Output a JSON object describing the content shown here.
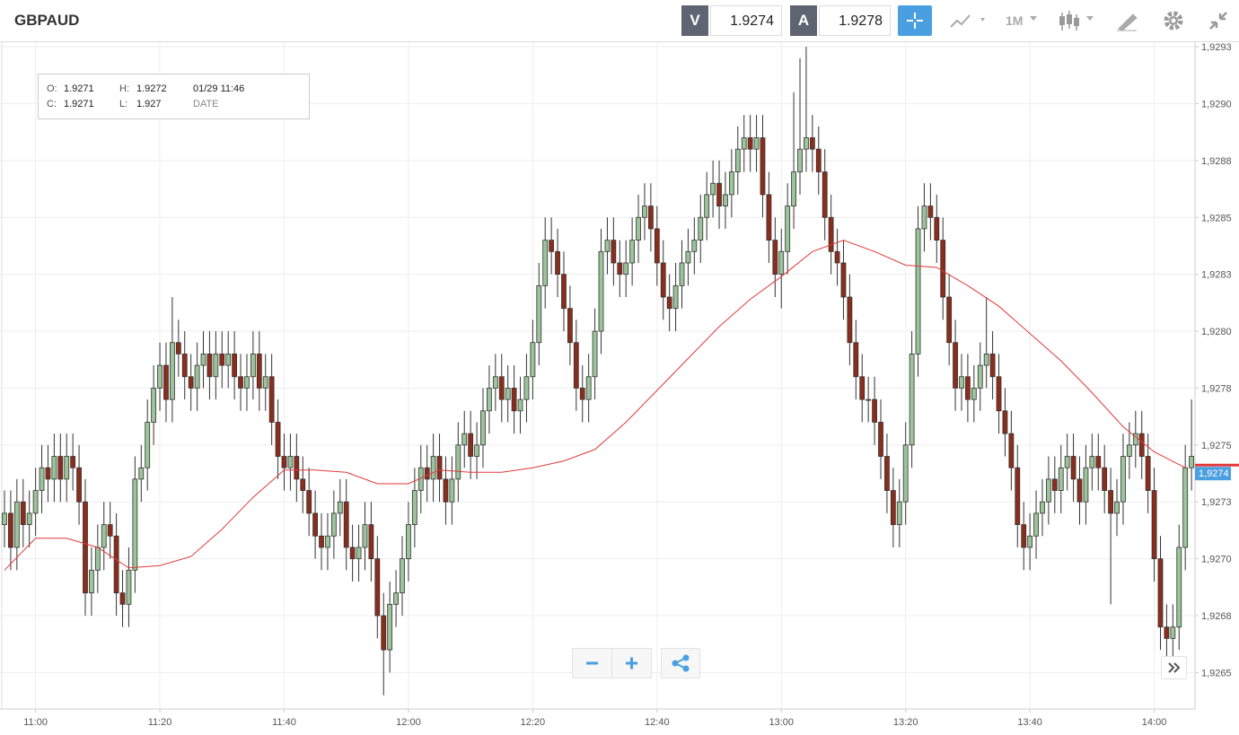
{
  "header": {
    "symbol": "GBPAUD",
    "sell_label": "V",
    "sell_price": "1.9274",
    "buy_label": "A",
    "buy_price": "1.9278",
    "timeframe": "1M"
  },
  "info_box": {
    "o_label": "O:",
    "o_value": "1.9271",
    "h_label": "H:",
    "h_value": "1.9272",
    "date_value": "01/29 11:46",
    "c_label": "C:",
    "c_value": "1.9271",
    "l_label": "L:",
    "l_value": "1.927",
    "date_label": "DATE"
  },
  "chart_data": {
    "type": "candlestick",
    "x": [
      "10:55",
      "10:56",
      "10:57",
      "10:58",
      "10:59",
      "11:00",
      "11:01",
      "11:02",
      "11:03",
      "11:04",
      "11:05",
      "11:06",
      "11:07",
      "11:08",
      "11:09",
      "11:10",
      "11:11",
      "11:12",
      "11:13",
      "11:14",
      "11:15",
      "11:16",
      "11:17",
      "11:18",
      "11:19",
      "11:20",
      "11:21",
      "11:22",
      "11:23",
      "11:24",
      "11:25",
      "11:26",
      "11:27",
      "11:28",
      "11:29",
      "11:30",
      "11:31",
      "11:32",
      "11:33",
      "11:34",
      "11:35",
      "11:36",
      "11:37",
      "11:38",
      "11:39",
      "11:40",
      "11:41",
      "11:42",
      "11:43",
      "11:44",
      "11:45",
      "11:46",
      "11:47",
      "11:48",
      "11:49",
      "11:50",
      "11:51",
      "11:52",
      "11:53",
      "11:54",
      "11:55",
      "11:56",
      "11:57",
      "11:58",
      "11:59",
      "12:00",
      "12:01",
      "12:02",
      "12:03",
      "12:04",
      "12:05",
      "12:06",
      "12:07",
      "12:08",
      "12:09",
      "12:10",
      "12:11",
      "12:12",
      "12:13",
      "12:14",
      "12:15",
      "12:16",
      "12:17",
      "12:18",
      "12:19",
      "12:20",
      "12:21",
      "12:22",
      "12:23",
      "12:24",
      "12:25",
      "12:26",
      "12:27",
      "12:28",
      "12:29",
      "12:30",
      "12:31",
      "12:32",
      "12:33",
      "12:34",
      "12:35",
      "12:36",
      "12:37",
      "12:38",
      "12:39",
      "12:40",
      "12:41",
      "12:42",
      "12:43",
      "12:44",
      "12:45",
      "12:46",
      "12:47",
      "12:48",
      "12:49",
      "12:50",
      "12:51",
      "12:52",
      "12:53",
      "12:54",
      "12:55",
      "12:56",
      "12:57",
      "12:58",
      "12:59",
      "13:00",
      "13:01",
      "13:02",
      "13:03",
      "13:04",
      "13:05",
      "13:06",
      "13:07",
      "13:08",
      "13:09",
      "13:10",
      "13:11",
      "13:12",
      "13:13",
      "13:14",
      "13:15",
      "13:16",
      "13:17",
      "13:18",
      "13:19",
      "13:20",
      "13:21",
      "13:22",
      "13:23",
      "13:24",
      "13:25",
      "13:26",
      "13:27",
      "13:28",
      "13:29",
      "13:30",
      "13:31",
      "13:32",
      "13:33",
      "13:34",
      "13:35",
      "13:36",
      "13:37",
      "13:38",
      "13:39",
      "13:40",
      "13:41",
      "13:42",
      "13:43",
      "13:44",
      "13:45",
      "13:46",
      "13:47",
      "13:48",
      "13:49",
      "13:50",
      "13:51",
      "13:52",
      "13:53",
      "13:54",
      "13:55",
      "13:56",
      "13:57",
      "13:58",
      "13:59",
      "14:00",
      "14:01",
      "14:02",
      "14:03",
      "14:04",
      "14:05",
      "14:06"
    ],
    "open": [
      1.92715,
      1.9272,
      1.92705,
      1.92725,
      1.92715,
      1.9272,
      1.9273,
      1.9274,
      1.92735,
      1.92745,
      1.92735,
      1.92745,
      1.9274,
      1.92725,
      1.92685,
      1.92695,
      1.92705,
      1.92715,
      1.9271,
      1.92685,
      1.9268,
      1.92695,
      1.92735,
      1.9274,
      1.9276,
      1.92775,
      1.92785,
      1.9277,
      1.92795,
      1.9279,
      1.9278,
      1.92775,
      1.92785,
      1.9279,
      1.9278,
      1.9279,
      1.92785,
      1.9279,
      1.9278,
      1.92775,
      1.9278,
      1.9279,
      1.92775,
      1.9278,
      1.9276,
      1.92745,
      1.9274,
      1.92745,
      1.92735,
      1.9273,
      1.9272,
      1.9271,
      1.92705,
      1.9271,
      1.9272,
      1.92725,
      1.92705,
      1.927,
      1.92705,
      1.92715,
      1.927,
      1.92675,
      1.9266,
      1.9268,
      1.92685,
      1.927,
      1.92715,
      1.9273,
      1.9274,
      1.92735,
      1.92745,
      1.92735,
      1.92725,
      1.92735,
      1.9275,
      1.92755,
      1.92745,
      1.9275,
      1.92765,
      1.92775,
      1.9278,
      1.9277,
      1.92775,
      1.92765,
      1.9277,
      1.9278,
      1.92795,
      1.9282,
      1.9284,
      1.92835,
      1.92825,
      1.9281,
      1.92795,
      1.92775,
      1.9277,
      1.9278,
      1.928,
      1.92835,
      1.9284,
      1.9283,
      1.92825,
      1.9283,
      1.9284,
      1.9285,
      1.92855,
      1.92845,
      1.9283,
      1.92815,
      1.9281,
      1.9282,
      1.9283,
      1.92835,
      1.9284,
      1.9285,
      1.9286,
      1.92865,
      1.92855,
      1.9286,
      1.9287,
      1.9288,
      1.92885,
      1.9288,
      1.92885,
      1.9286,
      1.9284,
      1.92825,
      1.92835,
      1.92855,
      1.9287,
      1.9288,
      1.92885,
      1.9288,
      1.9287,
      1.9285,
      1.92835,
      1.9283,
      1.92815,
      1.92795,
      1.9278,
      1.9277,
      1.9277,
      1.9276,
      1.92745,
      1.9273,
      1.92715,
      1.92725,
      1.9275,
      1.9279,
      1.92845,
      1.92855,
      1.9285,
      1.9284,
      1.92815,
      1.92795,
      1.92775,
      1.9278,
      1.9277,
      1.92775,
      1.92785,
      1.9279,
      1.9278,
      1.92765,
      1.92755,
      1.9274,
      1.92715,
      1.92705,
      1.9271,
      1.9272,
      1.92725,
      1.92735,
      1.9273,
      1.9274,
      1.92745,
      1.92735,
      1.92725,
      1.9274,
      1.92745,
      1.9274,
      1.9273,
      1.9272,
      1.92725,
      1.92745,
      1.9275,
      1.92755,
      1.92745,
      1.9273,
      1.927,
      1.9267,
      1.92665,
      1.9267,
      1.92705,
      1.9274
    ],
    "high": [
      1.9273,
      1.9273,
      1.92735,
      1.92735,
      1.9273,
      1.9274,
      1.9275,
      1.9275,
      1.92755,
      1.92755,
      1.92755,
      1.92755,
      1.9275,
      1.92735,
      1.92705,
      1.92715,
      1.92725,
      1.92725,
      1.9272,
      1.92695,
      1.92705,
      1.92745,
      1.9275,
      1.9277,
      1.92785,
      1.92795,
      1.92795,
      1.92815,
      1.92805,
      1.928,
      1.9279,
      1.92795,
      1.928,
      1.928,
      1.928,
      1.928,
      1.928,
      1.928,
      1.9279,
      1.9279,
      1.928,
      1.928,
      1.9279,
      1.9279,
      1.9277,
      1.92755,
      1.92755,
      1.92755,
      1.92745,
      1.9274,
      1.9273,
      1.9272,
      1.9272,
      1.9273,
      1.92735,
      1.92735,
      1.92715,
      1.92715,
      1.92725,
      1.92725,
      1.9271,
      1.92685,
      1.9269,
      1.92695,
      1.9271,
      1.92725,
      1.9274,
      1.9275,
      1.9275,
      1.92755,
      1.92755,
      1.92745,
      1.92745,
      1.9276,
      1.92765,
      1.92765,
      1.9276,
      1.92775,
      1.92785,
      1.9279,
      1.9279,
      1.92785,
      1.92785,
      1.9278,
      1.9279,
      1.92805,
      1.9283,
      1.9285,
      1.9285,
      1.92845,
      1.92835,
      1.9282,
      1.92805,
      1.92785,
      1.9279,
      1.9281,
      1.92845,
      1.9285,
      1.9285,
      1.9284,
      1.9284,
      1.9285,
      1.9286,
      1.92865,
      1.92865,
      1.92855,
      1.9284,
      1.92825,
      1.9283,
      1.9284,
      1.92845,
      1.9285,
      1.9286,
      1.9287,
      1.92875,
      1.92875,
      1.9287,
      1.9288,
      1.9289,
      1.92895,
      1.92895,
      1.92895,
      1.92895,
      1.9287,
      1.9285,
      1.92845,
      1.92865,
      1.92905,
      1.9292,
      1.92925,
      1.92895,
      1.9289,
      1.9288,
      1.9286,
      1.92845,
      1.9284,
      1.92825,
      1.92805,
      1.9279,
      1.9278,
      1.9278,
      1.9277,
      1.92755,
      1.9274,
      1.92735,
      1.9276,
      1.928,
      1.92855,
      1.92865,
      1.92865,
      1.9286,
      1.9285,
      1.92825,
      1.92805,
      1.9279,
      1.9279,
      1.92785,
      1.92795,
      1.92815,
      1.928,
      1.9279,
      1.92775,
      1.92765,
      1.9275,
      1.92725,
      1.9272,
      1.9273,
      1.92735,
      1.92745,
      1.92745,
      1.9275,
      1.92755,
      1.92755,
      1.92745,
      1.9275,
      1.92755,
      1.92755,
      1.9275,
      1.9274,
      1.92735,
      1.92755,
      1.9276,
      1.92765,
      1.92765,
      1.92755,
      1.9274,
      1.9271,
      1.9268,
      1.9268,
      1.92715,
      1.9275,
      1.9277
    ],
    "low": [
      1.92705,
      1.92695,
      1.92695,
      1.92705,
      1.92705,
      1.9271,
      1.9272,
      1.92725,
      1.92725,
      1.92725,
      1.92725,
      1.9273,
      1.92715,
      1.92675,
      1.92675,
      1.92685,
      1.92695,
      1.927,
      1.92675,
      1.9267,
      1.9267,
      1.92685,
      1.92725,
      1.9273,
      1.9275,
      1.92765,
      1.9276,
      1.9276,
      1.9278,
      1.9277,
      1.92765,
      1.92765,
      1.92775,
      1.9277,
      1.9277,
      1.92775,
      1.92775,
      1.9277,
      1.92765,
      1.92765,
      1.9277,
      1.92765,
      1.92765,
      1.9275,
      1.92735,
      1.9273,
      1.9273,
      1.92725,
      1.9272,
      1.9271,
      1.927,
      1.92695,
      1.92695,
      1.927,
      1.9271,
      1.92695,
      1.9269,
      1.9269,
      1.92695,
      1.9269,
      1.92665,
      1.9264,
      1.9265,
      1.9267,
      1.92675,
      1.9269,
      1.92705,
      1.9272,
      1.92725,
      1.92725,
      1.92725,
      1.92715,
      1.92715,
      1.92725,
      1.9274,
      1.92735,
      1.92735,
      1.9274,
      1.92755,
      1.92765,
      1.9276,
      1.9276,
      1.92755,
      1.92755,
      1.9276,
      1.9277,
      1.92785,
      1.9281,
      1.92825,
      1.92815,
      1.928,
      1.92785,
      1.92765,
      1.9276,
      1.9276,
      1.9277,
      1.9279,
      1.92825,
      1.9282,
      1.92815,
      1.92815,
      1.9282,
      1.9283,
      1.9284,
      1.92835,
      1.9282,
      1.92805,
      1.928,
      1.928,
      1.9281,
      1.9282,
      1.92825,
      1.9283,
      1.9284,
      1.9285,
      1.92845,
      1.92845,
      1.9285,
      1.9286,
      1.9287,
      1.9287,
      1.9287,
      1.9285,
      1.9283,
      1.92815,
      1.9281,
      1.92825,
      1.92845,
      1.9286,
      1.9287,
      1.9287,
      1.9286,
      1.9284,
      1.92825,
      1.9282,
      1.92805,
      1.92785,
      1.9277,
      1.9276,
      1.9276,
      1.9275,
      1.92735,
      1.9272,
      1.92705,
      1.92705,
      1.92715,
      1.9274,
      1.9278,
      1.92835,
      1.9284,
      1.9283,
      1.92805,
      1.92785,
      1.92765,
      1.92765,
      1.9276,
      1.9276,
      1.92765,
      1.92775,
      1.9277,
      1.92755,
      1.92745,
      1.9273,
      1.92705,
      1.92695,
      1.92695,
      1.927,
      1.9271,
      1.92715,
      1.9272,
      1.9272,
      1.9273,
      1.92725,
      1.92715,
      1.92715,
      1.9273,
      1.9273,
      1.9272,
      1.9268,
      1.9271,
      1.92715,
      1.92735,
      1.9274,
      1.92735,
      1.9272,
      1.9269,
      1.9266,
      1.92655,
      1.92655,
      1.9266,
      1.92695,
      1.9273
    ],
    "close": [
      1.9272,
      1.92705,
      1.92725,
      1.92715,
      1.9272,
      1.9273,
      1.9274,
      1.92735,
      1.92745,
      1.92735,
      1.92745,
      1.9274,
      1.92725,
      1.92685,
      1.92695,
      1.92705,
      1.92715,
      1.9271,
      1.92685,
      1.9268,
      1.92695,
      1.92735,
      1.9274,
      1.9276,
      1.92775,
      1.92785,
      1.9277,
      1.92795,
      1.9279,
      1.9278,
      1.92775,
      1.92785,
      1.9279,
      1.9278,
      1.9279,
      1.92785,
      1.9279,
      1.9278,
      1.92775,
      1.9278,
      1.9279,
      1.92775,
      1.9278,
      1.9276,
      1.92745,
      1.9274,
      1.92745,
      1.92735,
      1.9273,
      1.9272,
      1.9271,
      1.92705,
      1.9271,
      1.9272,
      1.92725,
      1.92705,
      1.927,
      1.92705,
      1.92715,
      1.927,
      1.92675,
      1.9266,
      1.9268,
      1.92685,
      1.927,
      1.92715,
      1.9273,
      1.9274,
      1.92735,
      1.92745,
      1.92735,
      1.92725,
      1.92735,
      1.9275,
      1.92755,
      1.92745,
      1.9275,
      1.92765,
      1.92775,
      1.9278,
      1.9277,
      1.92775,
      1.92765,
      1.9277,
      1.9278,
      1.92795,
      1.9282,
      1.9284,
      1.92835,
      1.92825,
      1.9281,
      1.92795,
      1.92775,
      1.9277,
      1.9278,
      1.928,
      1.92835,
      1.9284,
      1.9283,
      1.92825,
      1.9283,
      1.9284,
      1.9285,
      1.92855,
      1.92845,
      1.9283,
      1.92815,
      1.9281,
      1.9282,
      1.9283,
      1.92835,
      1.9284,
      1.9285,
      1.9286,
      1.92865,
      1.92855,
      1.9286,
      1.9287,
      1.9288,
      1.92885,
      1.9288,
      1.92885,
      1.9286,
      1.9284,
      1.92825,
      1.92835,
      1.92855,
      1.9287,
      1.9288,
      1.92885,
      1.9288,
      1.9287,
      1.9285,
      1.92835,
      1.9283,
      1.92815,
      1.92795,
      1.9278,
      1.9277,
      1.9277,
      1.9276,
      1.92745,
      1.9273,
      1.92715,
      1.92725,
      1.9275,
      1.9279,
      1.92845,
      1.92855,
      1.9285,
      1.9284,
      1.92815,
      1.92795,
      1.92775,
      1.9278,
      1.9277,
      1.92775,
      1.92785,
      1.9279,
      1.9278,
      1.92765,
      1.92755,
      1.9274,
      1.92715,
      1.92705,
      1.9271,
      1.9272,
      1.92725,
      1.92735,
      1.9273,
      1.9274,
      1.92745,
      1.92735,
      1.92725,
      1.9274,
      1.92745,
      1.9274,
      1.9273,
      1.9272,
      1.92725,
      1.92745,
      1.9275,
      1.92755,
      1.92745,
      1.9273,
      1.927,
      1.9267,
      1.92665,
      1.9267,
      1.92705,
      1.9274,
      1.92745
    ],
    "up_color": "#9cc49a",
    "down_color": "#8c2d1c",
    "ma": {
      "color": "#e0393a",
      "x": [
        "10:55",
        "11:00",
        "11:05",
        "11:10",
        "11:15",
        "11:20",
        "11:25",
        "11:30",
        "11:35",
        "11:40",
        "11:45",
        "11:50",
        "11:55",
        "12:00",
        "12:05",
        "12:10",
        "12:15",
        "12:20",
        "12:25",
        "12:30",
        "12:35",
        "12:40",
        "12:45",
        "12:50",
        "12:55",
        "13:00",
        "13:05",
        "13:10",
        "13:15",
        "13:20",
        "13:25",
        "13:30",
        "13:35",
        "13:40",
        "13:45",
        "13:50",
        "13:55",
        "14:00",
        "14:05"
      ],
      "values": [
        1.92695,
        1.92709,
        1.92709,
        1.92705,
        1.92696,
        1.92697,
        1.92701,
        1.92713,
        1.92727,
        1.92739,
        1.92739,
        1.92738,
        1.92733,
        1.92733,
        1.92739,
        1.92738,
        1.92738,
        1.9274,
        1.92743,
        1.92748,
        1.9276,
        1.92774,
        1.92788,
        1.92802,
        1.92814,
        1.92824,
        1.92835,
        1.9284,
        1.92835,
        1.92829,
        1.92828,
        1.9282,
        1.92811,
        1.92799,
        1.92787,
        1.92773,
        1.92758,
        1.92747,
        1.9274
      ]
    },
    "last_price": {
      "value": 1.9274,
      "label": "1,9274",
      "color": "#e0393a"
    },
    "ylim": [
      1.92634,
      1.92927
    ],
    "yticks": [
      {
        "value": 1.9265,
        "label": "1,9265"
      },
      {
        "value": 1.92675,
        "label": "1,9268"
      },
      {
        "value": 1.927,
        "label": "1,9270"
      },
      {
        "value": 1.92725,
        "label": "1,9273"
      },
      {
        "value": 1.9275,
        "label": "1,9275"
      },
      {
        "value": 1.92775,
        "label": "1,9278"
      },
      {
        "value": 1.928,
        "label": "1,9280"
      },
      {
        "value": 1.92825,
        "label": "1,9283"
      },
      {
        "value": 1.9285,
        "label": "1,9285"
      },
      {
        "value": 1.92875,
        "label": "1,9288"
      },
      {
        "value": 1.929,
        "label": "1,9290"
      },
      {
        "value": 1.92925,
        "label": "1,9293"
      }
    ],
    "xticks": [
      "11:00",
      "11:20",
      "11:40",
      "12:00",
      "12:20",
      "12:40",
      "13:00",
      "13:20",
      "13:40",
      "14:00"
    ],
    "grid": true
  }
}
